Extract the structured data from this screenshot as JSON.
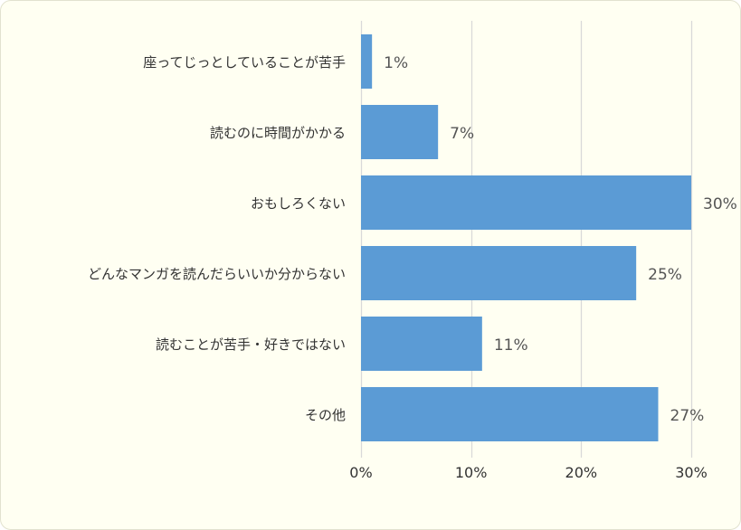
{
  "chart_data": {
    "type": "bar",
    "orientation": "horizontal",
    "categories": [
      "座ってじっとしていることが苦手",
      "読むのに時間がかかる",
      "おもしろくない",
      "どんなマンガを読んだらいいか分からない",
      "読むことが苦手・好きではない",
      "その他"
    ],
    "values": [
      1,
      7,
      30,
      25,
      11,
      27
    ],
    "value_labels": [
      "1%",
      "7%",
      "30%",
      "25%",
      "11%",
      "27%"
    ],
    "xlim": [
      0,
      30
    ],
    "x_ticks": [
      0,
      10,
      20,
      30
    ],
    "x_tick_labels": [
      "0%",
      "10%",
      "20%",
      "30%"
    ],
    "grid": true,
    "bar_color": "#5b9bd5",
    "grid_color": "#d9d9d9"
  }
}
